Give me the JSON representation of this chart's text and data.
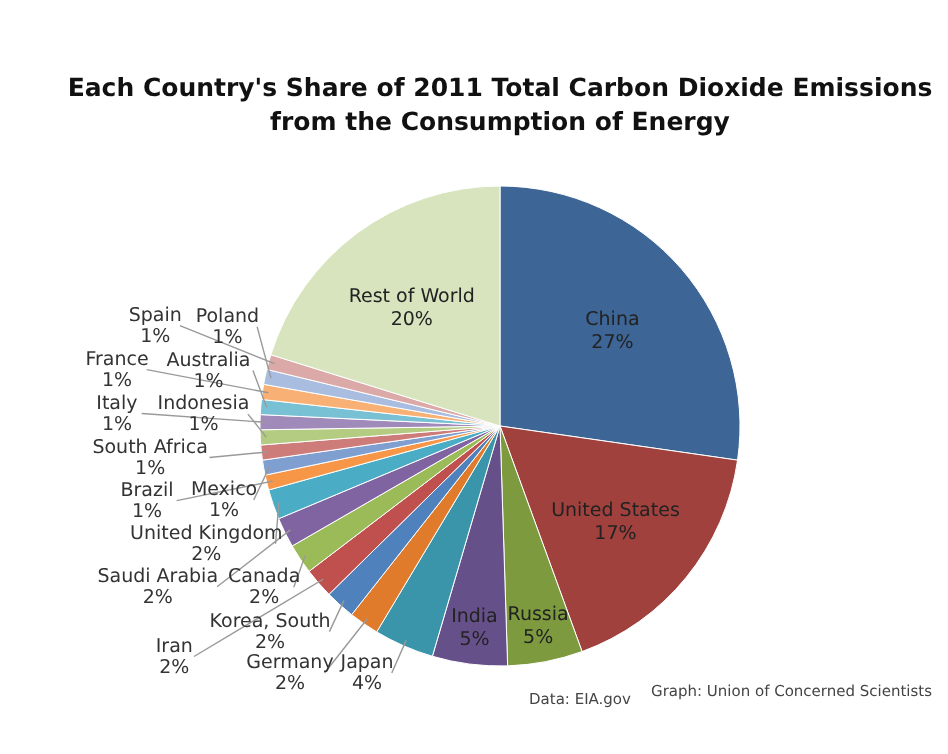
{
  "chart_data": {
    "type": "pie",
    "title": "Each Country's Share of 2011 Total Carbon Dioxide Emissions from the Consumption of Energy",
    "categories": [
      "China",
      "United States",
      "Russia",
      "India",
      "Japan",
      "Germany",
      "Korea, South",
      "Iran",
      "Canada",
      "Saudi Arabia",
      "United Kingdom",
      "Brazil",
      "Mexico",
      "South Africa",
      "Indonesia",
      "Italy",
      "Australia",
      "France",
      "Poland",
      "Spain",
      "Rest of World"
    ],
    "values": [
      27,
      17,
      5,
      5,
      4,
      2,
      2,
      2,
      2,
      2,
      2,
      1,
      1,
      1,
      1,
      1,
      1,
      1,
      1,
      1,
      20
    ],
    "value_labels": [
      "27%",
      "17%",
      "5%",
      "5%",
      "4%",
      "2%",
      "2%",
      "2%",
      "2%",
      "2%",
      "2%",
      "1%",
      "1%",
      "1%",
      "1%",
      "1%",
      "1%",
      "1%",
      "1%",
      "1%",
      "20%"
    ],
    "colors": [
      "#3d6595",
      "#a0413e",
      "#7e9a3f",
      "#66508a",
      "#3a95aa",
      "#e07b2b",
      "#4f81bd",
      "#c0504d",
      "#9bbb59",
      "#8064a2",
      "#4bacc6",
      "#f79646",
      "#7f9fd0",
      "#cd7c79",
      "#b3cc82",
      "#9f8ab9",
      "#78c0d4",
      "#f9b074",
      "#a9bde0",
      "#dbaaa8",
      "#d7e4bd"
    ],
    "annotations": [
      "Data: EIA.gov",
      "Graph: Union of Concerned Scientists"
    ]
  }
}
